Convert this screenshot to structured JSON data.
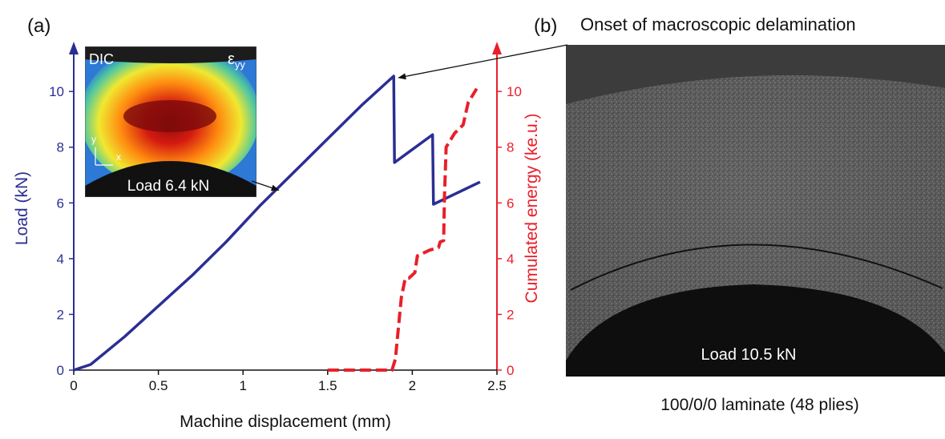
{
  "panel_a": {
    "label": "(a)"
  },
  "panel_b": {
    "label": "(b)",
    "photo_title": "Onset of macroscopic delamination",
    "photo_load": "Load 10.5 kN",
    "caption": "100/0/0 laminate (48 plies)"
  },
  "inset": {
    "label_left": "DIC",
    "label_right_main": "ε",
    "label_right_sub": "yy",
    "axis_y": "y",
    "axis_x": "x",
    "load_label": "Load 6.4 kN"
  },
  "colors": {
    "load": "#2b2e93",
    "energy": "#e8202a",
    "inset_bg": "#2a2a2a",
    "photo_bg": "#4d4d4d"
  },
  "chart_data": {
    "type": "line",
    "xlabel": "Machine displacement (mm)",
    "ylabel_left": "Load (kN)",
    "ylabel_right": "Cumulated energy (ke.u.)",
    "xlim": [
      0,
      2.5
    ],
    "ylim_left": [
      0,
      11.5
    ],
    "ylim_right": [
      0,
      11.5
    ],
    "x_ticks": [
      "0",
      "0.5",
      "1",
      "1.5",
      "2",
      "2.5"
    ],
    "y_left_ticks": [
      "0",
      "2",
      "4",
      "6",
      "8",
      "10"
    ],
    "y_right_ticks": [
      "0",
      "2",
      "4",
      "6",
      "8",
      "10"
    ],
    "grid": false,
    "series": [
      {
        "axis": "left",
        "style": "solid",
        "x": [
          0,
          0.1,
          0.3,
          0.5,
          0.7,
          0.9,
          1.1,
          1.3,
          1.5,
          1.7,
          1.89,
          1.895,
          2.12,
          2.125,
          2.4
        ],
        "values": [
          0,
          0.2,
          1.2,
          2.3,
          3.4,
          4.6,
          5.9,
          7.1,
          8.3,
          9.5,
          10.55,
          7.45,
          8.45,
          5.95,
          6.75
        ]
      },
      {
        "axis": "right",
        "style": "dashed",
        "x": [
          1.5,
          1.88,
          1.9,
          1.935,
          1.955,
          1.96,
          1.98,
          2.015,
          2.03,
          2.1,
          2.155,
          2.165,
          2.185,
          2.19,
          2.2,
          2.25,
          2.3,
          2.33,
          2.38
        ],
        "values": [
          0,
          0,
          0.4,
          2.6,
          3.2,
          3.3,
          3.3,
          3.5,
          4.1,
          4.3,
          4.4,
          4.6,
          4.65,
          6.2,
          8.0,
          8.5,
          8.8,
          9.6,
          10.1
        ]
      }
    ],
    "annotations": [
      {
        "target": "inset",
        "x": 1.22,
        "y": 6.4
      },
      {
        "target": "photo",
        "x": 1.9,
        "y": 10.55
      }
    ]
  }
}
